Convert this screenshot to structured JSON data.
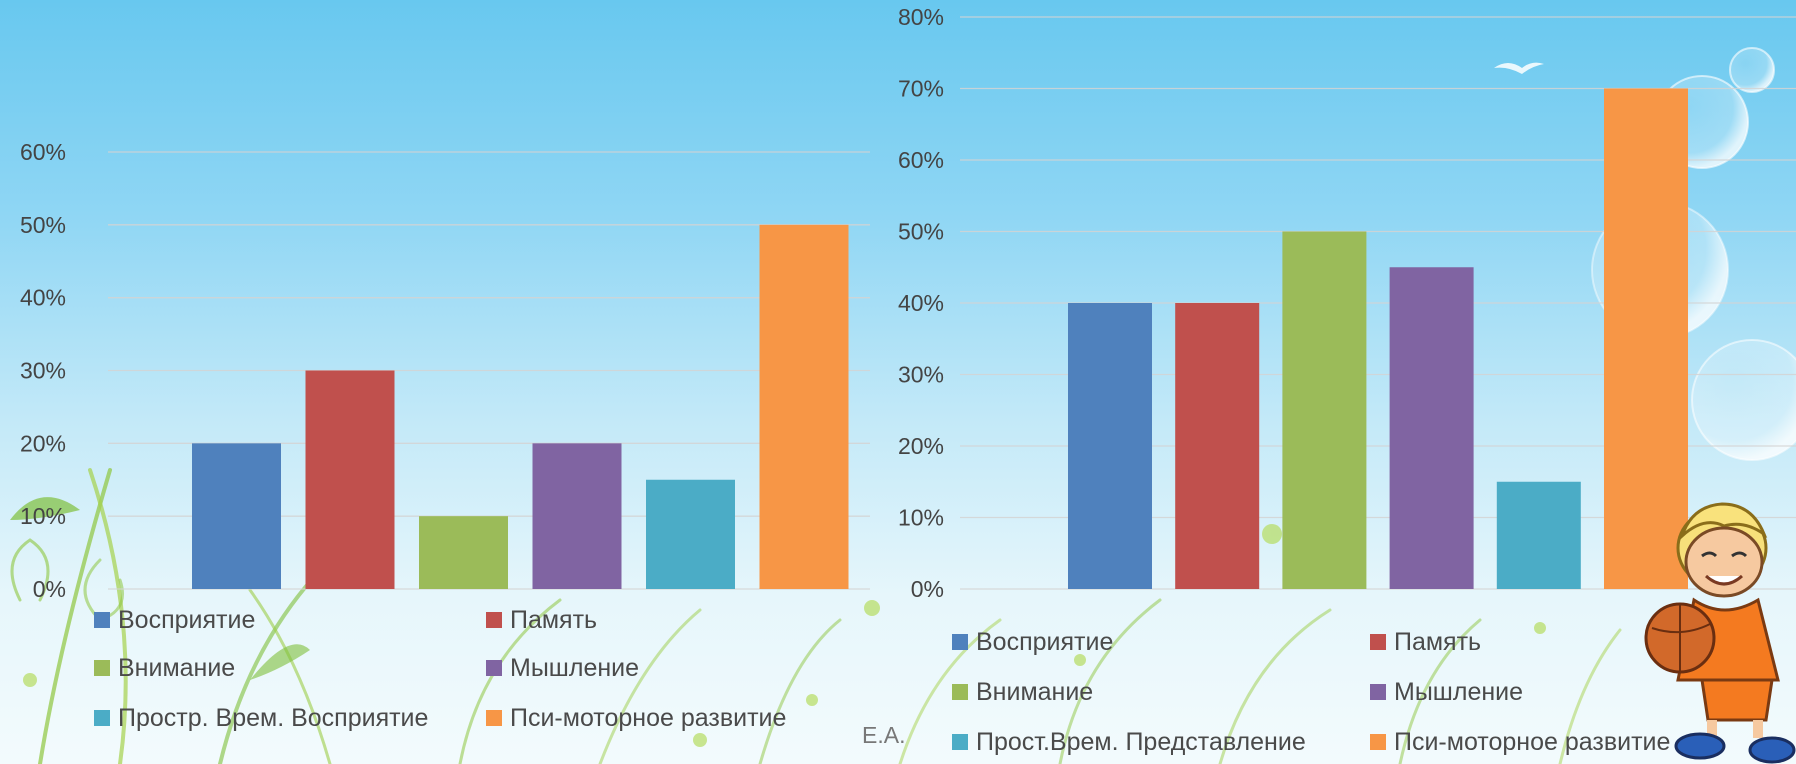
{
  "author": "Е.А.",
  "colors": {
    "perception": "#4f81bd",
    "memory": "#c0504d",
    "attention": "#9bbb59",
    "thinking": "#8064a2",
    "spatial": "#4bacc6",
    "psychomotor": "#f79646"
  },
  "chart_data": [
    {
      "type": "bar",
      "title": "",
      "xlabel": "",
      "ylabel": "",
      "ylim": [
        0,
        0.6
      ],
      "ytick_labels": [
        "0%",
        "10%",
        "20%",
        "30%",
        "40%",
        "50%",
        "60%"
      ],
      "grid": true,
      "legend_position": "bottom",
      "series": [
        {
          "name": "Восприятие",
          "color": "#4f81bd",
          "value": 0.2
        },
        {
          "name": "Память",
          "color": "#c0504d",
          "value": 0.3
        },
        {
          "name": "Внимание",
          "color": "#9bbb59",
          "value": 0.1
        },
        {
          "name": "Мышление",
          "color": "#8064a2",
          "value": 0.2
        },
        {
          "name": "Простр. Врем. Восприятие",
          "color": "#4bacc6",
          "value": 0.15
        },
        {
          "name": "Пси-моторное развитие",
          "color": "#f79646",
          "value": 0.5
        }
      ]
    },
    {
      "type": "bar",
      "title": "",
      "xlabel": "",
      "ylabel": "",
      "ylim": [
        0,
        0.8
      ],
      "ytick_labels": [
        "0%",
        "10%",
        "20%",
        "30%",
        "40%",
        "50%",
        "60%",
        "70%",
        "80%"
      ],
      "grid": true,
      "legend_position": "bottom",
      "series": [
        {
          "name": "Восприятие",
          "color": "#4f81bd",
          "value": 0.4
        },
        {
          "name": "Память",
          "color": "#c0504d",
          "value": 0.4
        },
        {
          "name": "Внимание",
          "color": "#9bbb59",
          "value": 0.5
        },
        {
          "name": "Мышление",
          "color": "#8064a2",
          "value": 0.45
        },
        {
          "name": "Прост.Врем. Представление",
          "color": "#4bacc6",
          "value": 0.15
        },
        {
          "name": "Пси-моторное развитие",
          "color": "#f79646",
          "value": 0.7
        }
      ]
    }
  ]
}
